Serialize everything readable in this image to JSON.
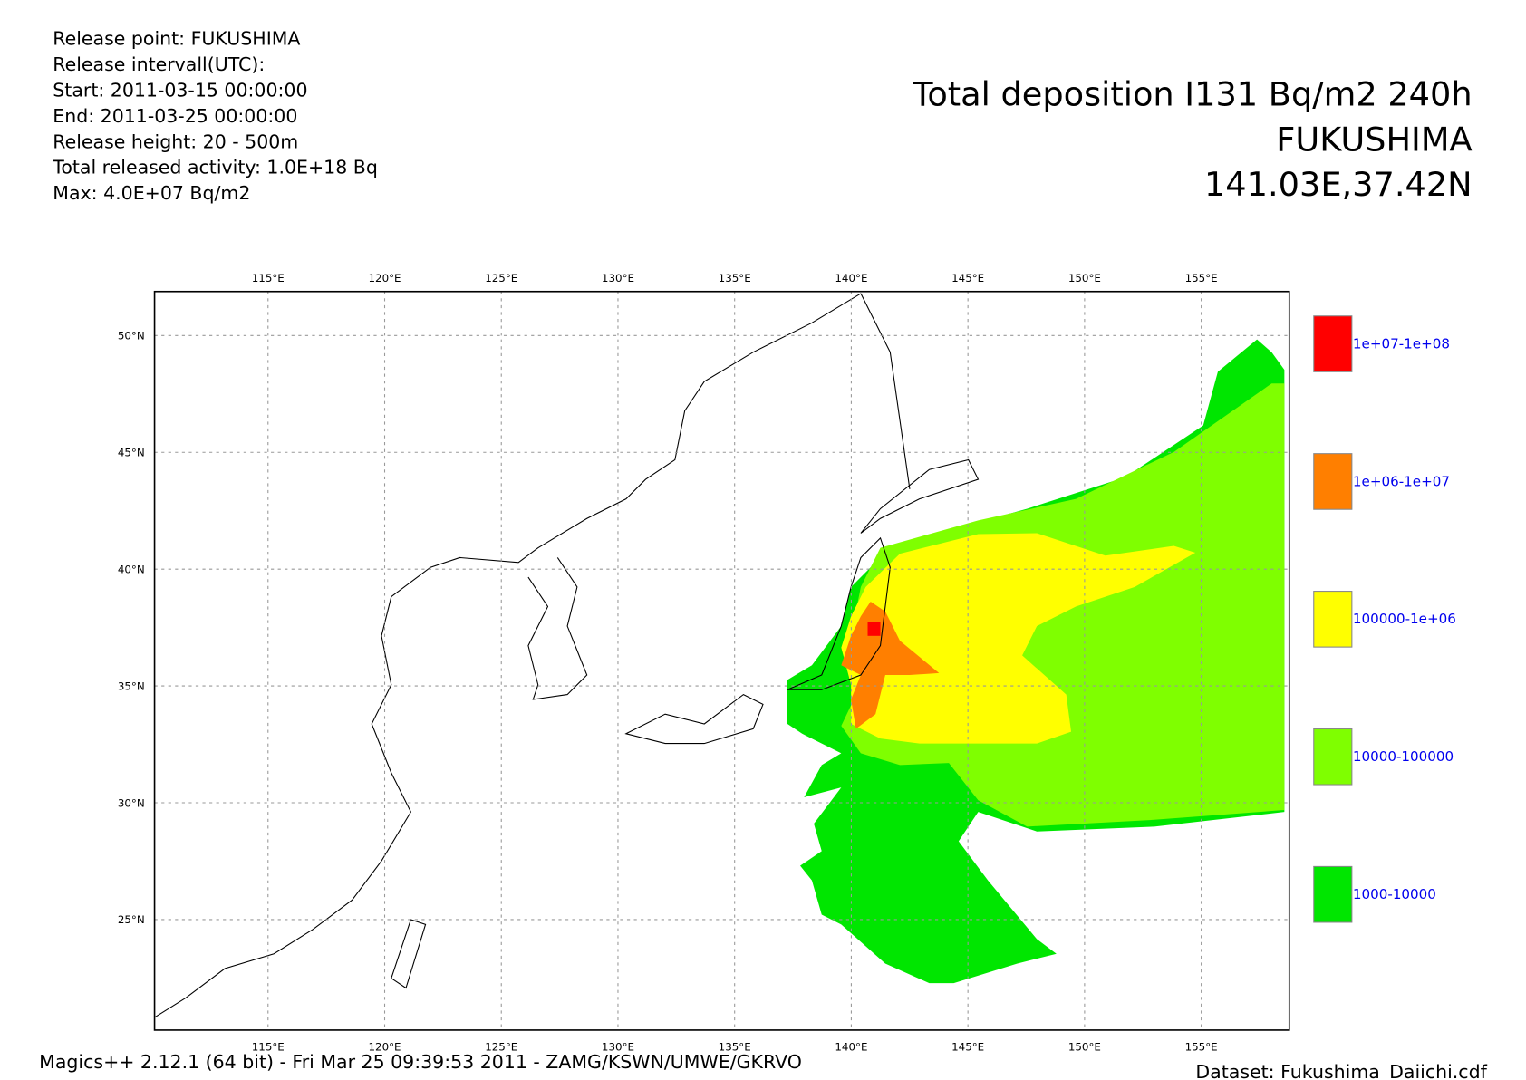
{
  "info": [
    "Release point: FUKUSHIMA",
    "Release intervall(UTC):",
    "Start: 2011-03-15 00:00:00",
    "End:  2011-03-25 00:00:00",
    "Release height:  20 -   500m",
    "Total released activity:  1.0E+18 Bq",
    "Max:  4.0E+07 Bq/m2"
  ],
  "title": [
    "Total deposition I131 Bq/m2 240h",
    "FUKUSHIMA",
    "141.03E,37.42N"
  ],
  "map": {
    "lon_labels": [
      "115°E",
      "120°E",
      "125°E",
      "130°E",
      "135°E",
      "140°E",
      "145°E",
      "150°E",
      "155°E"
    ],
    "lat_labels": [
      "50°N",
      "45°N",
      "40°N",
      "35°N",
      "30°N",
      "25°N"
    ]
  },
  "legend": [
    {
      "label": "1e+07-1e+08",
      "color": "#ff0000"
    },
    {
      "label": "1e+06-1e+07",
      "color": "#ff7f00"
    },
    {
      "label": "100000-1e+06",
      "color": "#ffff00"
    },
    {
      "label": "10000-100000",
      "color": "#7fff00"
    },
    {
      "label": "1000-10000",
      "color": "#00e600"
    }
  ],
  "footer": {
    "left": "Magics++ 2.12.1 (64 bit) - Fri Mar 25 09:39:53 2011 - ZAMG/KSWN/UMWE/GKRVO",
    "right": "Dataset: Fukushima_Daiichi.cdf"
  }
}
